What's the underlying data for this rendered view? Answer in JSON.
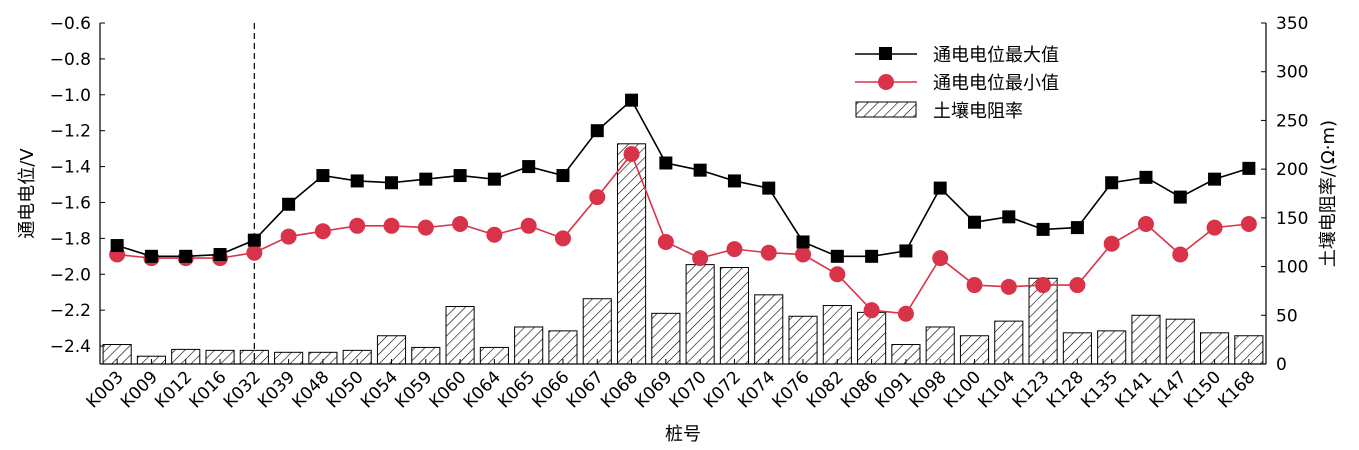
{
  "chart_data": {
    "type": "bar+line",
    "categories": [
      "K003",
      "K009",
      "K012",
      "K016",
      "K032",
      "K039",
      "K048",
      "K050",
      "K054",
      "K059",
      "K060",
      "K064",
      "K065",
      "K066",
      "K067",
      "K068",
      "K069",
      "K070",
      "K072",
      "K074",
      "K076",
      "K082",
      "K086",
      "K091",
      "K098",
      "K100",
      "K104",
      "K123",
      "K128",
      "K135",
      "K141",
      "K147",
      "K150",
      "K168"
    ],
    "series": [
      {
        "name": "通电电位最大值",
        "axis": "left",
        "kind": "line",
        "marker": "square",
        "color": "#000000",
        "values": [
          -1.84,
          -1.9,
          -1.9,
          -1.89,
          -1.81,
          -1.61,
          -1.45,
          -1.48,
          -1.49,
          -1.47,
          -1.45,
          -1.47,
          -1.4,
          -1.45,
          -1.2,
          -1.03,
          -1.38,
          -1.42,
          -1.48,
          -1.52,
          -1.82,
          -1.9,
          -1.9,
          -1.87,
          -1.52,
          -1.71,
          -1.68,
          -1.75,
          -1.74,
          -1.49,
          -1.46,
          -1.57,
          -1.47,
          -1.41
        ]
      },
      {
        "name": "通电电位最小值",
        "axis": "left",
        "kind": "line",
        "marker": "circle",
        "color": "#d9334a",
        "values": [
          -1.89,
          -1.91,
          -1.91,
          -1.91,
          -1.88,
          -1.79,
          -1.76,
          -1.73,
          -1.73,
          -1.74,
          -1.72,
          -1.78,
          -1.73,
          -1.8,
          -1.57,
          -1.33,
          -1.82,
          -1.91,
          -1.86,
          -1.88,
          -1.89,
          -2.0,
          -2.2,
          -2.22,
          -1.91,
          -2.06,
          -2.07,
          -2.06,
          -2.06,
          -1.83,
          -1.72,
          -1.89,
          -1.74,
          -1.72
        ]
      },
      {
        "name": "土壤电阻率",
        "axis": "right",
        "kind": "bar",
        "pattern": "hatch",
        "values": [
          20,
          8,
          15,
          14,
          14,
          12,
          12,
          14,
          29,
          17,
          59,
          17,
          38,
          34,
          67,
          226,
          52,
          102,
          99,
          71,
          49,
          60,
          53,
          20,
          38,
          29,
          44,
          88,
          32,
          34,
          50,
          46,
          32,
          29
        ]
      }
    ],
    "left_axis": {
      "label": "通电电位/V",
      "ylim": [
        -2.5,
        -0.6
      ],
      "ticks": [
        -0.6,
        -0.8,
        -1.0,
        -1.2,
        -1.4,
        -1.6,
        -1.8,
        -2.0,
        -2.2,
        -2.4
      ],
      "tick_labels": [
        "−0.6",
        "−0.8",
        "−1.0",
        "−1.2",
        "−1.4",
        "−1.6",
        "−1.8",
        "−2.0",
        "−2.2",
        "−2.4"
      ]
    },
    "right_axis": {
      "label": "土壤电阻率/(Ω·m)",
      "ylim": [
        0,
        350
      ],
      "ticks": [
        0,
        50,
        100,
        150,
        200,
        250,
        300,
        350
      ],
      "tick_labels": [
        "0",
        "50",
        "100",
        "150",
        "200",
        "250",
        "300",
        "350"
      ]
    },
    "xlabel": "桩号",
    "reference_line_category": "K032",
    "legend": {
      "position": "top-right",
      "entries": [
        "通电电位最大值",
        "通电电位最小值",
        "土壤电阻率"
      ]
    },
    "grid": false
  }
}
